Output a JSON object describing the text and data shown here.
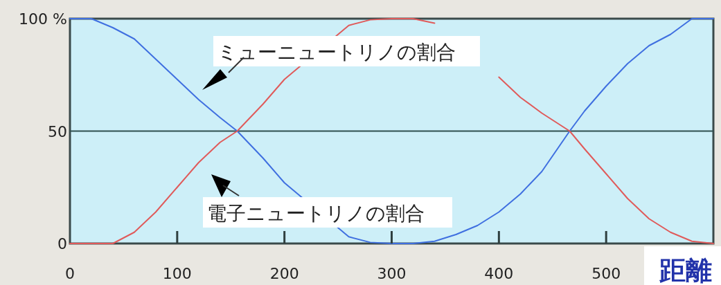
{
  "chart_data": {
    "type": "line",
    "xlabel": "距離",
    "x": [
      0,
      20,
      40,
      60,
      80,
      100,
      120,
      140,
      156,
      180,
      200,
      260,
      280,
      300,
      320,
      340,
      360,
      380,
      400,
      420,
      440,
      466,
      480,
      500,
      520,
      540,
      560,
      580,
      600
    ],
    "series": [
      {
        "color": "#3f6fe0",
        "values": [
          100,
          100,
          96,
          91,
          82,
          73,
          64,
          56,
          50,
          38,
          27,
          3,
          0.5,
          0,
          0,
          1,
          4,
          8,
          14,
          22,
          32,
          50,
          59,
          70,
          80,
          88,
          93,
          100,
          100
        ]
      },
      {
        "color": "#e05a5a",
        "values": [
          0,
          0,
          0,
          5,
          14,
          25,
          36,
          45,
          50,
          62,
          73,
          97,
          99.5,
          100,
          100,
          98,
          null,
          null,
          74,
          65,
          58,
          50,
          42,
          31,
          20,
          11,
          5,
          1,
          0
        ]
      }
    ],
    "xlim": [
      0,
      600
    ],
    "ylim": [
      0,
      100
    ],
    "xticks": [
      0,
      100,
      200,
      300,
      400,
      500
    ],
    "yticks": [
      0,
      50,
      {
        "value": 100,
        "label": "100 %"
      }
    ],
    "ref_lines": [
      {
        "axis": "y",
        "value": 50,
        "color": "#2f4f4f"
      }
    ],
    "annotations": [
      "ミューニュートリノの割合",
      "電子ニュートリノの割合"
    ],
    "grid": false,
    "marker": "none",
    "line_style": "solid"
  }
}
